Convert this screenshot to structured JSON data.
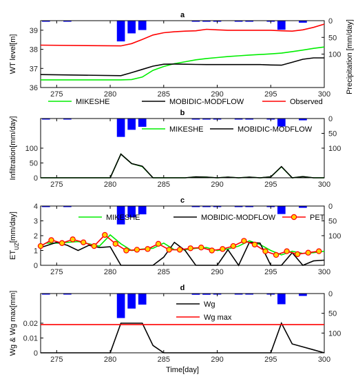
{
  "colors": {
    "green": "#00ee00",
    "black": "#000000",
    "red": "#ff0000",
    "blue": "#0000ff",
    "pet_fill": "#ffd200"
  },
  "xaxis": {
    "label": "Time[day]",
    "xlim": [
      273.5,
      300
    ],
    "ticks": [
      275,
      280,
      285,
      290,
      295,
      300
    ]
  },
  "chart_data": [
    {
      "id": "a",
      "type": "line",
      "title": "a",
      "ylabel": "WT level[m]",
      "ylabel_right": "Precipitation [mm/day]",
      "ylim": [
        36,
        39.5
      ],
      "yticks": [
        36,
        37,
        38,
        39
      ],
      "precip_ylim": [
        0,
        200
      ],
      "precip_ticks": [
        0,
        50,
        100
      ],
      "legend": {
        "placement": "below",
        "entries": [
          "MIKESHE",
          "MOBIDIC-MODFLOW",
          "Observed"
        ]
      },
      "series": [
        {
          "name": "MIKESHE",
          "color": "green",
          "x": [
            273.5,
            281,
            282,
            283,
            284,
            285,
            286,
            287,
            288,
            289,
            290,
            291,
            292,
            293,
            294,
            295,
            296,
            297,
            298,
            299,
            300
          ],
          "values": [
            36.4,
            36.4,
            36.42,
            36.55,
            36.9,
            37.1,
            37.25,
            37.35,
            37.45,
            37.52,
            37.57,
            37.62,
            37.66,
            37.7,
            37.73,
            37.76,
            37.8,
            37.88,
            37.96,
            38.05,
            38.12
          ]
        },
        {
          "name": "MOBIDIC-MODFLOW",
          "color": "black",
          "x": [
            273.5,
            281,
            282,
            283,
            284,
            285,
            286,
            287,
            288,
            289,
            290,
            291,
            292,
            293,
            294,
            295,
            296,
            297,
            298,
            299,
            300
          ],
          "values": [
            36.68,
            36.62,
            36.78,
            36.95,
            37.12,
            37.22,
            37.23,
            37.22,
            37.21,
            37.2,
            37.2,
            37.2,
            37.2,
            37.2,
            37.2,
            37.18,
            37.17,
            37.32,
            37.48,
            37.55,
            37.55
          ]
        },
        {
          "name": "Observed",
          "color": "red",
          "x": [
            273.5,
            281,
            282,
            283,
            284,
            285,
            286,
            287,
            288,
            289,
            290,
            291,
            292,
            293,
            294,
            295,
            296,
            297,
            298,
            299,
            300
          ],
          "values": [
            38.22,
            38.18,
            38.3,
            38.52,
            38.75,
            38.87,
            38.92,
            38.95,
            38.97,
            39.05,
            39.02,
            39.0,
            39.0,
            39.0,
            39.0,
            39.0,
            38.97,
            38.95,
            39.02,
            39.15,
            39.32
          ]
        }
      ]
    },
    {
      "id": "b",
      "type": "line",
      "title": "b",
      "ylabel": "Infiltration[mm/day]",
      "ylim": [
        0,
        200
      ],
      "yticks": [
        0,
        50,
        100
      ],
      "precip_ylim": [
        0,
        200
      ],
      "precip_ticks": [
        0,
        50,
        100
      ],
      "legend": {
        "placement": "top-right",
        "entries": [
          "MIKESHE",
          "MOBIDIC-MODFLOW"
        ]
      },
      "series": [
        {
          "name": "MIKESHE",
          "color": "green",
          "x": [
            273.5,
            280,
            281,
            282,
            283,
            284,
            285,
            286,
            287,
            288,
            289,
            290,
            291,
            292,
            293,
            294,
            295,
            296,
            297,
            298,
            299,
            300
          ],
          "values": [
            0,
            0,
            80,
            48,
            38,
            0,
            0,
            0,
            0,
            3,
            2,
            0,
            2,
            0,
            2,
            0,
            3,
            37,
            0,
            4,
            0,
            0
          ]
        },
        {
          "name": "MOBIDIC-MODFLOW",
          "color": "black",
          "x": [
            273.5,
            280,
            281,
            282,
            283,
            284,
            285,
            286,
            287,
            288,
            289,
            290,
            291,
            292,
            293,
            294,
            295,
            296,
            297,
            298,
            299,
            300
          ],
          "values": [
            0,
            0,
            80,
            48,
            39,
            0,
            0,
            0,
            0,
            3,
            2,
            0,
            2,
            0,
            2,
            0,
            3,
            38,
            0,
            4,
            0,
            0
          ]
        }
      ]
    },
    {
      "id": "c",
      "type": "line",
      "title": "c",
      "ylabel_main": "ET",
      "ylabel_sub": "UZ",
      "ylabel_tail": "[mm/day]",
      "ylim": [
        0,
        4
      ],
      "yticks": [
        0,
        1,
        2,
        3,
        4
      ],
      "precip_ylim": [
        0,
        200
      ],
      "precip_ticks": [
        0,
        50,
        100
      ],
      "legend": {
        "placement": "top",
        "entries": [
          "MIKESHE",
          "MOBIDIC-MODFLOW",
          "PET"
        ]
      },
      "series": [
        {
          "name": "MIKESHE",
          "color": "green",
          "x": [
            273.5,
            274,
            275,
            276,
            277,
            278,
            279,
            280,
            281,
            282,
            283,
            284,
            285,
            286,
            287,
            288,
            289,
            290,
            291,
            292,
            293,
            294,
            295,
            296,
            297,
            298,
            299,
            300
          ],
          "values": [
            1.3,
            1.5,
            1.5,
            1.55,
            1.6,
            1.45,
            1.3,
            2.05,
            1.45,
            1.0,
            1.1,
            1.15,
            1.5,
            1.05,
            1.05,
            1.15,
            1.2,
            1.0,
            1.1,
            1.3,
            1.65,
            1.4,
            1.0,
            0.7,
            0.95,
            0.8,
            0.85,
            0.95
          ]
        },
        {
          "name": "MOBIDIC-MODFLOW",
          "color": "black",
          "x": [
            273.5,
            275,
            276,
            277,
            278,
            279,
            280,
            281,
            282,
            283,
            284,
            285,
            286,
            287,
            288,
            289,
            290,
            291,
            292,
            293,
            294,
            295,
            296,
            297,
            298,
            299,
            300
          ],
          "values": [
            1.2,
            1.55,
            1.35,
            1.0,
            1.35,
            1.2,
            1.25,
            0,
            0,
            0,
            0,
            0.55,
            1.55,
            1.0,
            0,
            0,
            0,
            1.05,
            0,
            1.55,
            1.5,
            0,
            0,
            0.85,
            0,
            0.3,
            0.35
          ]
        },
        {
          "name": "PET",
          "color": "red",
          "marker": "circle",
          "x": [
            273.5,
            274.5,
            275.5,
            276.5,
            277.5,
            278.5,
            279.5,
            280.5,
            281.5,
            282.5,
            283.5,
            284.5,
            285.5,
            286.5,
            287.5,
            288.5,
            289.5,
            290.5,
            291.5,
            292.5,
            293.5,
            294.5,
            295.5,
            296.5,
            297.5,
            298.5,
            299.5
          ],
          "values": [
            1.3,
            1.7,
            1.5,
            1.75,
            1.55,
            1.3,
            2.05,
            1.45,
            1.0,
            1.05,
            1.1,
            1.45,
            1.05,
            1.05,
            1.15,
            1.2,
            1.0,
            1.1,
            1.3,
            1.65,
            1.4,
            0.95,
            0.7,
            0.95,
            0.75,
            0.85,
            0.95
          ]
        }
      ]
    },
    {
      "id": "d",
      "type": "line",
      "title": "d",
      "ylabel": "Wg & Wg max[mm]",
      "ylim": [
        0,
        0.04
      ],
      "yticks": [
        0,
        0.01,
        0.02
      ],
      "precip_ylim": [
        0,
        150
      ],
      "precip_ticks": [
        0,
        50,
        100
      ],
      "legend": {
        "placement": "top-right",
        "entries": [
          "Wg",
          "Wg max"
        ]
      },
      "series": [
        {
          "name": "Wg",
          "color": "black",
          "x": [
            273.5,
            280,
            281,
            282,
            283,
            284,
            285,
            295,
            296,
            297,
            298,
            299,
            300
          ],
          "values": [
            0,
            0,
            0.02,
            0.02,
            0.02,
            0.005,
            0,
            0,
            0.02,
            0.006,
            0.004,
            0.002,
            0
          ]
        },
        {
          "name": "Wg max",
          "color": "red",
          "x": [
            273.5,
            300
          ],
          "values": [
            0.019,
            0.019
          ]
        }
      ]
    }
  ],
  "precipitation": {
    "color": "blue",
    "bars": [
      {
        "day": 274,
        "value": 1
      },
      {
        "day": 276,
        "value": 1
      },
      {
        "day": 281,
        "value": 62
      },
      {
        "day": 282,
        "value": 38
      },
      {
        "day": 283,
        "value": 28
      },
      {
        "day": 288,
        "value": 3
      },
      {
        "day": 289,
        "value": 3
      },
      {
        "day": 290,
        "value": 2
      },
      {
        "day": 292,
        "value": 2
      },
      {
        "day": 293,
        "value": 1
      },
      {
        "day": 295,
        "value": 2
      },
      {
        "day": 296,
        "value": 27
      },
      {
        "day": 298,
        "value": 6
      }
    ]
  }
}
